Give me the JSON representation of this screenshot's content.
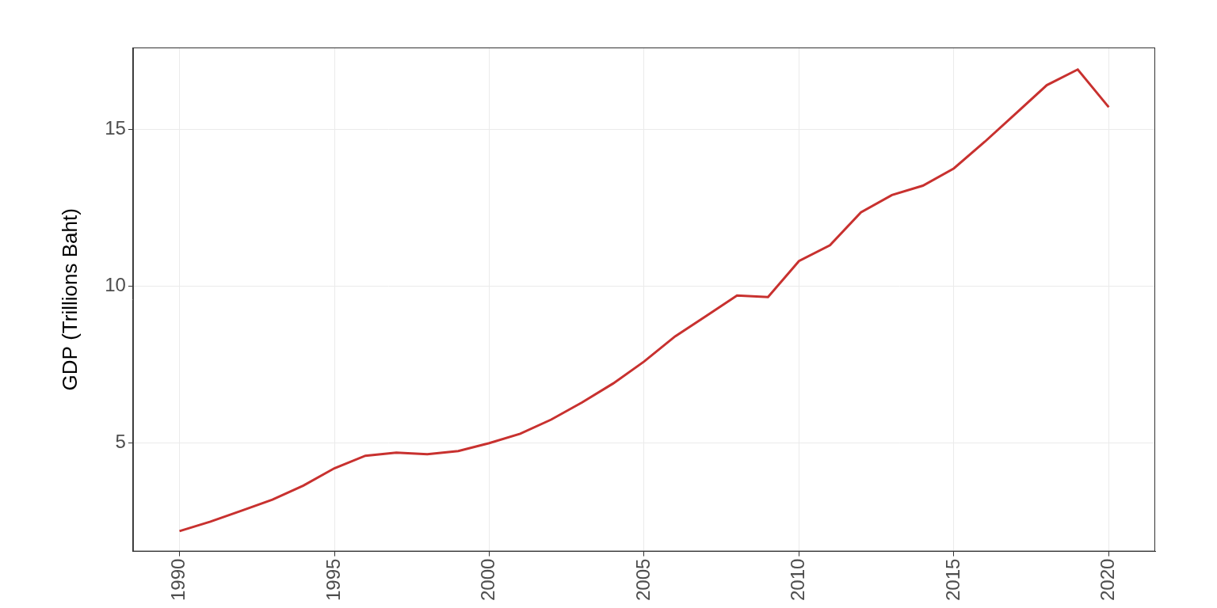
{
  "chart_data": {
    "type": "line",
    "y_label": "GDP (Trillions Baht)",
    "x": [
      1990,
      1991,
      1992,
      1993,
      1994,
      1995,
      1996,
      1997,
      1998,
      1999,
      2000,
      2001,
      2002,
      2003,
      2004,
      2005,
      2006,
      2007,
      2008,
      2009,
      2010,
      2011,
      2012,
      2013,
      2014,
      2015,
      2016,
      2017,
      2018,
      2019,
      2020
    ],
    "values": [
      2.2,
      2.5,
      2.85,
      3.2,
      3.65,
      4.2,
      4.6,
      4.7,
      4.65,
      4.75,
      5.0,
      5.3,
      5.75,
      6.3,
      6.9,
      7.6,
      8.4,
      9.05,
      9.7,
      9.65,
      10.8,
      11.3,
      12.35,
      12.9,
      13.2,
      13.75,
      14.6,
      15.5,
      16.4,
      16.9,
      15.7
    ],
    "color": "#c8312f",
    "xlim": [
      1988.5,
      2021.5
    ],
    "xticks": [
      1990,
      1995,
      2000,
      2005,
      2010,
      2015,
      2020
    ],
    "ylim": [
      1.55,
      17.6
    ],
    "yticks": [
      5,
      10,
      15
    ],
    "grid": true
  }
}
